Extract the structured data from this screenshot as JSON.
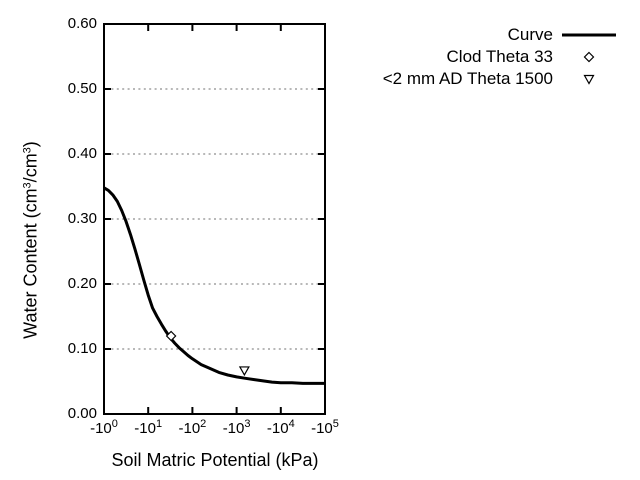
{
  "chart_data": {
    "type": "line",
    "title": "",
    "xlabel": "Soil Matric Potential (kPa)",
    "ylabel": "Water Content (cm3/cm3)",
    "ylabel_parts": [
      {
        "text": "Water Content (cm",
        "sup": false
      },
      {
        "text": "3",
        "sup": true
      },
      {
        "text": "/cm",
        "sup": false
      },
      {
        "text": "3",
        "sup": true
      },
      {
        "text": ")",
        "sup": false
      }
    ],
    "x_scale": "negative-log10",
    "x_range": [
      -1,
      -100000
    ],
    "y_range": [
      0.0,
      0.6
    ],
    "x_ticks": [
      {
        "value": -1,
        "base": "-10",
        "exp": "0"
      },
      {
        "value": -10,
        "base": "-10",
        "exp": "1"
      },
      {
        "value": -100,
        "base": "-10",
        "exp": "2"
      },
      {
        "value": -1000,
        "base": "-10",
        "exp": "3"
      },
      {
        "value": -10000,
        "base": "-10",
        "exp": "4"
      },
      {
        "value": -100000,
        "base": "-10",
        "exp": "5"
      }
    ],
    "y_ticks": [
      {
        "value": 0.0,
        "label": "0.00"
      },
      {
        "value": 0.1,
        "label": "0.10"
      },
      {
        "value": 0.2,
        "label": "0.20"
      },
      {
        "value": 0.3,
        "label": "0.30"
      },
      {
        "value": 0.4,
        "label": "0.40"
      },
      {
        "value": 0.5,
        "label": "0.50"
      },
      {
        "value": 0.6,
        "label": "0.60"
      }
    ],
    "grid": "horizontal-dotted",
    "legend_position": "top-right-outside",
    "series": [
      {
        "name": "Curve",
        "kind": "line",
        "marker": "none",
        "points": [
          [
            -1,
            0.348
          ],
          [
            -1.26,
            0.344
          ],
          [
            -1.58,
            0.337
          ],
          [
            -2,
            0.327
          ],
          [
            -2.51,
            0.313
          ],
          [
            -3.16,
            0.296
          ],
          [
            -3.98,
            0.276
          ],
          [
            -5.01,
            0.254
          ],
          [
            -6.31,
            0.23
          ],
          [
            -7.94,
            0.206
          ],
          [
            -10,
            0.183
          ],
          [
            -12.6,
            0.163
          ],
          [
            -15.8,
            0.15
          ],
          [
            -20,
            0.138
          ],
          [
            -25.1,
            0.127
          ],
          [
            -31.6,
            0.117
          ],
          [
            -39.8,
            0.109
          ],
          [
            -50.1,
            0.102
          ],
          [
            -63.1,
            0.096
          ],
          [
            -79.4,
            0.09
          ],
          [
            -100,
            0.085
          ],
          [
            -158,
            0.076
          ],
          [
            -251,
            0.07
          ],
          [
            -398,
            0.064
          ],
          [
            -631,
            0.06
          ],
          [
            -1000,
            0.057
          ],
          [
            -1585,
            0.055
          ],
          [
            -2512,
            0.053
          ],
          [
            -3981,
            0.051
          ],
          [
            -6310,
            0.049
          ],
          [
            -10000,
            0.048
          ],
          [
            -17783,
            0.048
          ],
          [
            -31623,
            0.047
          ],
          [
            -56234,
            0.047
          ],
          [
            -100000,
            0.047
          ]
        ]
      },
      {
        "name": "Clod Theta 33",
        "kind": "scatter",
        "marker": "diamond-open",
        "points": [
          [
            -33,
            0.12
          ]
        ]
      },
      {
        "name": "<2 mm AD Theta 1500",
        "kind": "scatter",
        "marker": "triangle-down-open",
        "points": [
          [
            -1500,
            0.067
          ]
        ]
      }
    ],
    "colors": {
      "line": "#000000",
      "grid": "#a0a0a0",
      "text": "#000000",
      "background": "#ffffff"
    }
  }
}
